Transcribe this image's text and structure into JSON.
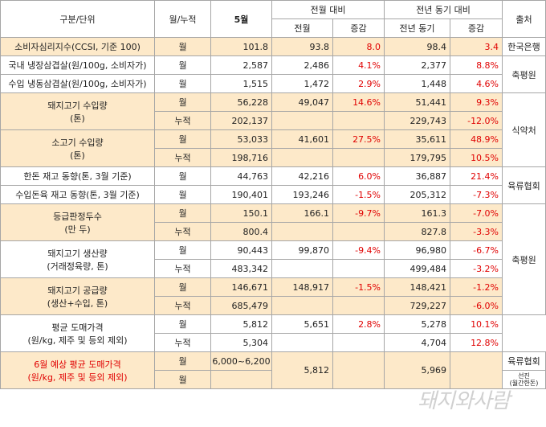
{
  "header": {
    "category": "구분/단위",
    "monthly_cum": "월/누적",
    "may": "5월",
    "mom": "전월 대비",
    "yoy": "전년 동기 대비",
    "source": "출처",
    "prev_month": "전월",
    "change1": "증감",
    "prev_year": "전년 동기",
    "change2": "증감"
  },
  "rows": {
    "r1": {
      "label": "소비자심리지수(CCSI, 기준 100)",
      "type": "월",
      "may": "101.8",
      "prev": "93.8",
      "chg": "8.0",
      "py": "98.4",
      "pychg": "3.4",
      "source": "한국은행"
    },
    "r2": {
      "label": "국내 냉장삼겹살(원/100g, 소비자가)",
      "type": "월",
      "may": "2,587",
      "prev": "2,486",
      "chg": "4.1%",
      "py": "2,377",
      "pychg": "8.8%"
    },
    "r3": {
      "label": "수입 냉동삼겹살(원/100g, 소비자가)",
      "type": "월",
      "may": "1,515",
      "prev": "1,472",
      "chg": "2.9%",
      "py": "1,448",
      "pychg": "4.6%"
    },
    "s_kpce": "축평원",
    "r4": {
      "label1": "돼지고기 수입량",
      "label2": "(톤)",
      "type_a": "월",
      "may_a": "56,228",
      "prev_a": "49,047",
      "chg_a": "14.6%",
      "py_a": "51,441",
      "pychg_a": "9.3%",
      "type_b": "누적",
      "may_b": "202,137",
      "py_b": "229,743",
      "pychg_b": "-12.0%"
    },
    "r5": {
      "label1": "소고기 수입량",
      "label2": "(톤)",
      "type_a": "월",
      "may_a": "53,033",
      "prev_a": "41,601",
      "chg_a": "27.5%",
      "py_a": "35,611",
      "pychg_a": "48.9%",
      "type_b": "누적",
      "may_b": "198,716",
      "py_b": "179,795",
      "pychg_b": "10.5%"
    },
    "s_mfds": "식약처",
    "r6": {
      "label": "한돈 재고 동향(톤, 3월 기준)",
      "type": "월",
      "may": "44,763",
      "prev": "42,216",
      "chg": "6.0%",
      "py": "36,887",
      "pychg": "21.4%"
    },
    "r7": {
      "label": "수입돈육 재고 동향(톤, 3월 기준)",
      "type": "월",
      "may": "190,401",
      "prev": "193,246",
      "chg": "-1.5%",
      "py": "205,312",
      "pychg": "-7.3%"
    },
    "s_meat": "육류협회",
    "r8": {
      "label1": "등급판정두수",
      "label2": "(만 두)",
      "type_a": "월",
      "may_a": "150.1",
      "prev_a": "166.1",
      "chg_a": "-9.7%",
      "py_a": "161.3",
      "pychg_a": "-7.0%",
      "type_b": "누적",
      "may_b": "800.4",
      "py_b": "827.8",
      "pychg_b": "-3.3%"
    },
    "r9": {
      "label1": "돼지고기 생산량",
      "label2": "(거래정육량, 톤)",
      "type_a": "월",
      "may_a": "90,443",
      "prev_a": "99,870",
      "chg_a": "-9.4%",
      "py_a": "96,980",
      "pychg_a": "-6.7%",
      "type_b": "누적",
      "may_b": "483,342",
      "py_b": "499,484",
      "pychg_b": "-3.2%"
    },
    "r10": {
      "label1": "돼지고기 공급량",
      "label2": "(생산+수입, 톤)",
      "type_a": "월",
      "may_a": "146,671",
      "prev_a": "148,917",
      "chg_a": "-1.5%",
      "py_a": "148,421",
      "pychg_a": "-1.2%",
      "type_b": "누적",
      "may_b": "685,479",
      "py_b": "729,227",
      "pychg_b": "-6.0%"
    },
    "s_kpce2": "축평원",
    "r11": {
      "label1": "평균 도매가격",
      "label2": "(원/kg, 제주 및 등외 제외)",
      "type_a": "월",
      "may_a": "5,812",
      "prev_a": "5,651",
      "chg_a": "2.8%",
      "py_a": "5,278",
      "pychg_a": "10.1%",
      "type_b": "누적",
      "may_b": "5,304",
      "py_b": "4,704",
      "pychg_b": "12.8%"
    },
    "r12": {
      "label1": "6월 예상 평균 도매가격",
      "label2": "(원/kg, 제주 및 등외 제외)",
      "type_a": "월",
      "may_a": "6,000~6,200",
      "prev": "5,812",
      "py": "5,969",
      "type_b": "월"
    },
    "s_meat2": "육류협회",
    "s_sunjin1": "선진",
    "s_sunjin2": "(월간한돈)"
  },
  "watermark": "돼지와사람"
}
